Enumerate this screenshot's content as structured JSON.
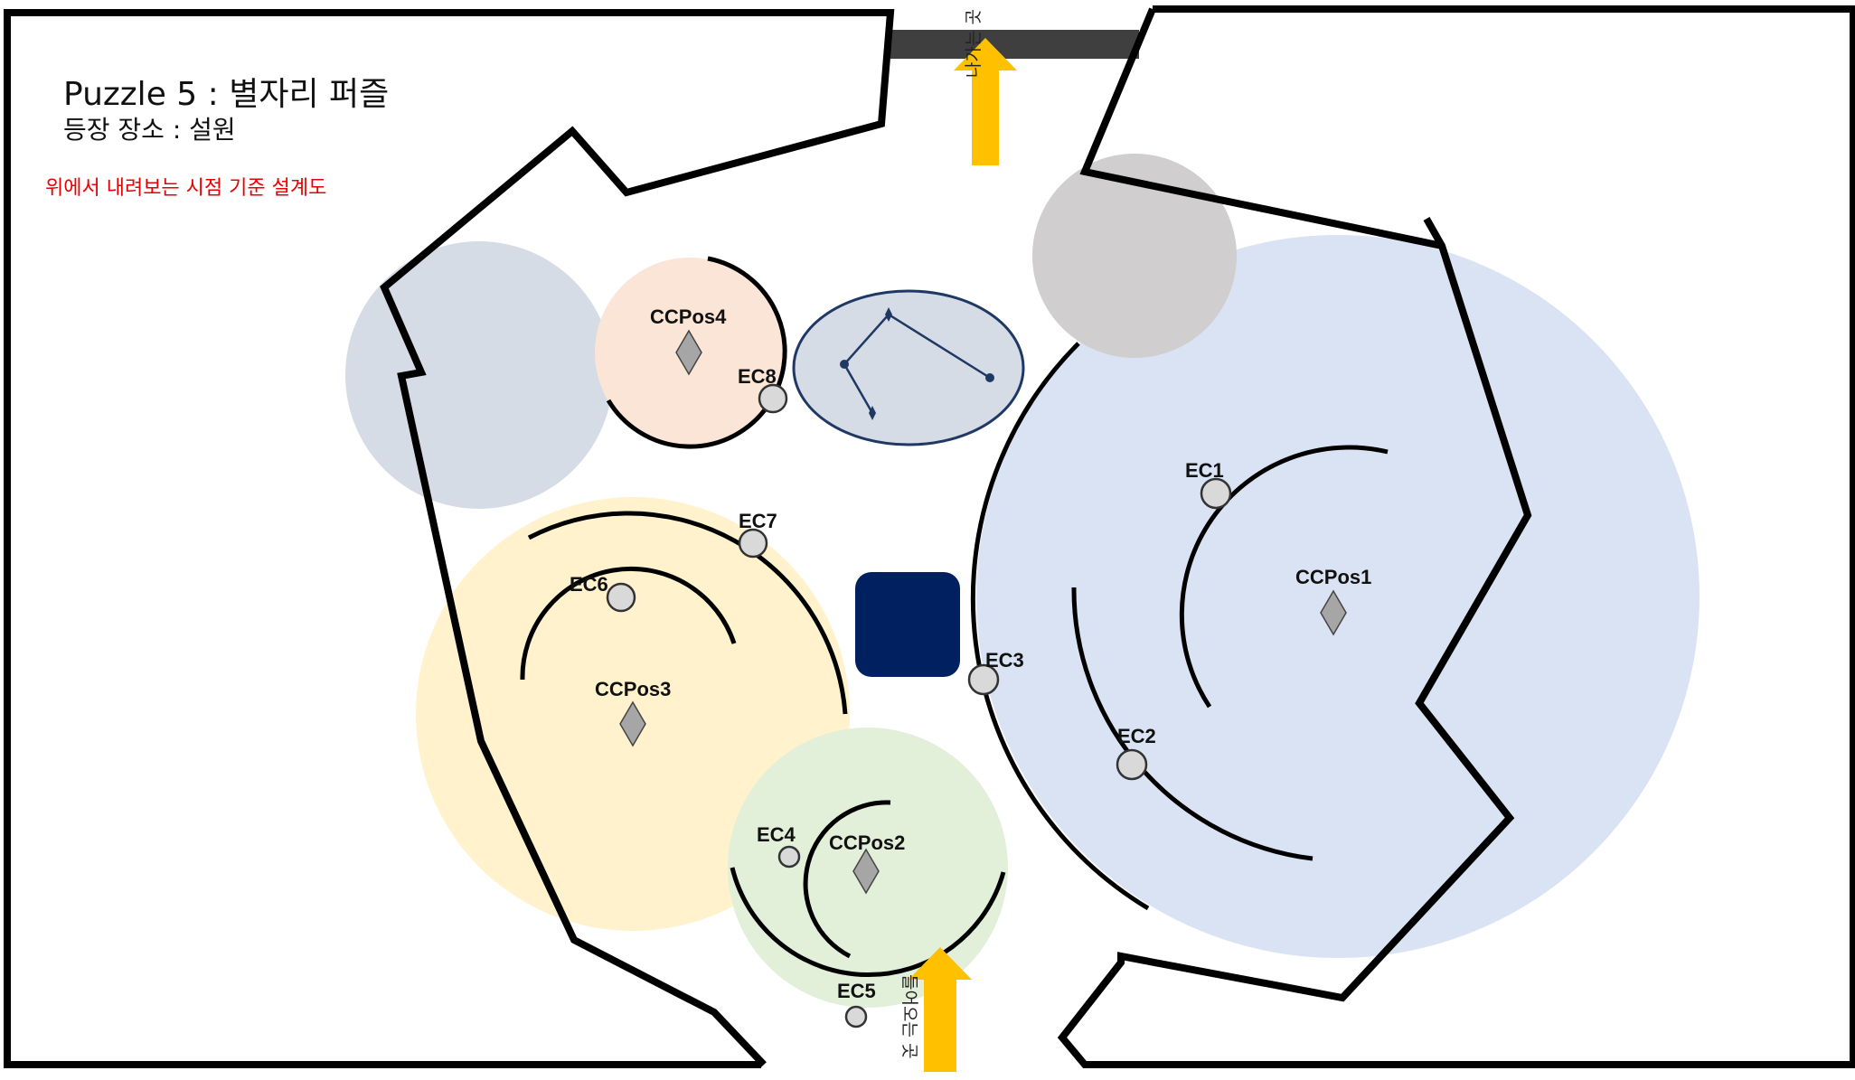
{
  "header": {
    "title": "Puzzle 5 : 별자리 퍼즐",
    "location": "등장 장소 : 설원",
    "view_note": "위에서 내려보는 시점 기준 설계도"
  },
  "markers": {
    "exit": "나가는 곳",
    "entrance": "들어오는 곳"
  },
  "zones": {
    "ccpos1": "CCPos1",
    "ccpos2": "CCPos2",
    "ccpos3": "CCPos3",
    "ccpos4": "CCPos4"
  },
  "nodes": {
    "ec1": "EC1",
    "ec2": "EC2",
    "ec3": "EC3",
    "ec4": "EC4",
    "ec5": "EC5",
    "ec6": "EC6",
    "ec7": "EC7",
    "ec8": "EC8"
  },
  "colors": {
    "wall": "#000000",
    "exit_bar": "#3f3f3f",
    "arrow": "#ffc000",
    "zone1_fill": "#dae3f3",
    "zone2_fill": "#e2efd9",
    "zone3_fill": "#fff2cc",
    "zone4_fill": "#fbe5d6",
    "grey_blue_circle": "#d6dce5",
    "grey_circle": "#d0cece",
    "constellation_fill": "#d6dce5",
    "constellation_line": "#1f3864",
    "center_block": "#002060",
    "node_fill": "#d9d9d9",
    "diamond_fill": "#a6a6a6",
    "view_note_color": "#e60000"
  }
}
